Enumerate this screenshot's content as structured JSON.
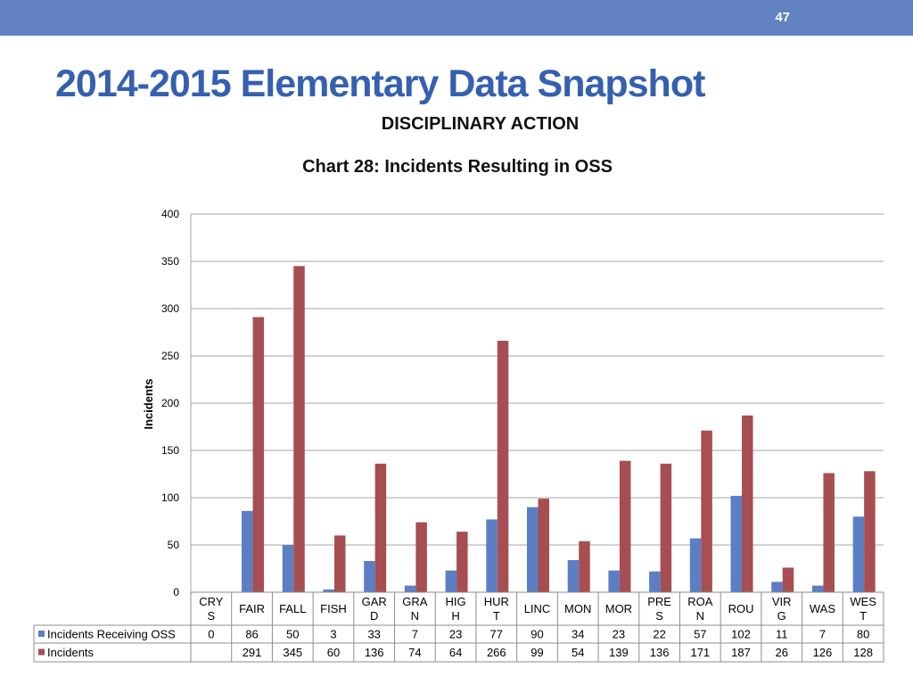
{
  "header": {
    "page_number": "47",
    "title": "2014-2015 Elementary Data Snapshot",
    "subtitle": "DISCIPLINARY ACTION"
  },
  "chart_data": {
    "type": "bar",
    "title": "Chart 28: Incidents Resulting in OSS",
    "xlabel": "",
    "ylabel": "Incidents",
    "ylim": [
      0,
      400
    ],
    "yticks": [
      0,
      50,
      100,
      150,
      200,
      250,
      300,
      350,
      400
    ],
    "grid": true,
    "legend": "data-table",
    "categories": [
      [
        "CRY",
        "S"
      ],
      [
        "FAIR"
      ],
      [
        "FALL"
      ],
      [
        "FISH"
      ],
      [
        "GAR",
        "D"
      ],
      [
        "GRA",
        "N"
      ],
      [
        "HIG",
        "H"
      ],
      [
        "HUR",
        "T"
      ],
      [
        "LINC"
      ],
      [
        "MON"
      ],
      [
        "MOR"
      ],
      [
        "PRE",
        "S"
      ],
      [
        "ROA",
        "N"
      ],
      [
        "ROU"
      ],
      [
        "VIR",
        "G"
      ],
      [
        "WAS"
      ],
      [
        "WES",
        "T"
      ]
    ],
    "series": [
      {
        "name": "Incidents Receiving OSS",
        "color": "#5b7ec4",
        "values": [
          0,
          86,
          50,
          3,
          33,
          7,
          23,
          77,
          90,
          34,
          23,
          22,
          57,
          102,
          11,
          7,
          80
        ]
      },
      {
        "name": "Incidents",
        "color": "#a64e51",
        "values": [
          null,
          291,
          345,
          60,
          136,
          74,
          64,
          266,
          99,
          54,
          139,
          136,
          171,
          187,
          26,
          126,
          128
        ]
      }
    ]
  }
}
